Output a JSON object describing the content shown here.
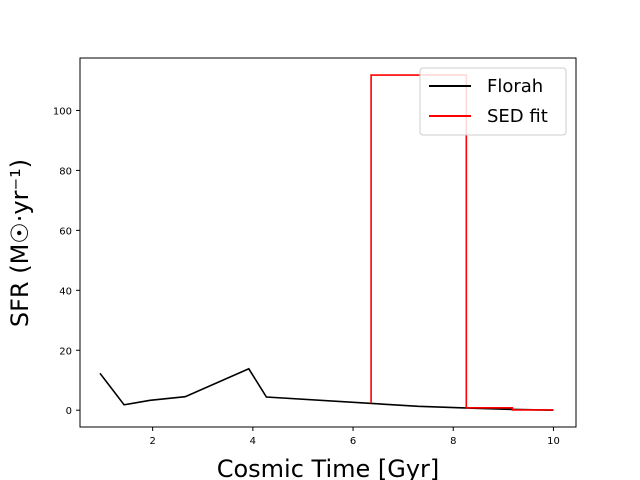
{
  "chart_data": {
    "type": "line",
    "xlabel": "Cosmic Time [Gyr]",
    "ylabel": "SFR (M☉·yr⁻¹)",
    "xlim": [
      0.55,
      10.45
    ],
    "ylim": [
      -5.6,
      117.5
    ],
    "xticks": [
      2,
      4,
      6,
      8,
      10
    ],
    "yticks": [
      0,
      20,
      40,
      60,
      80,
      100
    ],
    "grid": false,
    "legend_position": "top-right",
    "series": [
      {
        "name": "Florah",
        "color": "#000000",
        "step": false,
        "x": [
          0.95,
          1.43,
          1.95,
          2.65,
          3.92,
          4.27,
          7.3,
          8.3,
          9.1,
          10.0
        ],
        "y": [
          12.3,
          1.8,
          3.3,
          4.5,
          13.8,
          4.4,
          1.3,
          0.7,
          0.3,
          0.0
        ]
      },
      {
        "name": "SED fit",
        "color": "#ff0000",
        "step": true,
        "x": [
          6.36,
          6.36,
          8.26,
          8.26,
          9.18,
          9.18,
          10.0
        ],
        "y": [
          2.3,
          111.8,
          111.8,
          0.8,
          0.8,
          0.1,
          0.1
        ]
      }
    ]
  }
}
